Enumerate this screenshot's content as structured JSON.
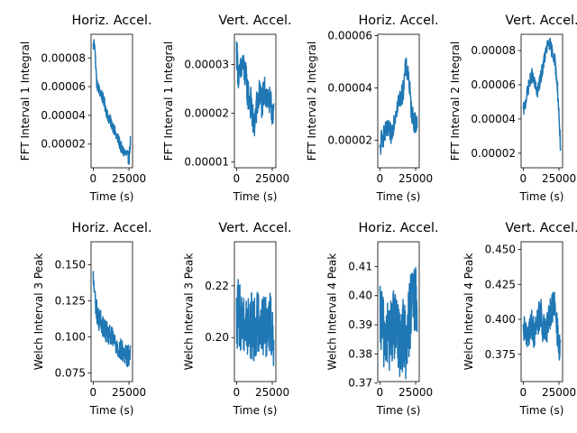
{
  "chart_data": [
    {
      "type": "line",
      "title": "Horiz. Accel.",
      "xlabel": "Time (s)",
      "ylabel": "FFT Interval 1 Integral",
      "xlim": [
        -1500,
        27500
      ],
      "ylim": [
        3.5e-06,
        9.65e-05
      ],
      "xticks": [
        0,
        25000
      ],
      "xtick_labels": [
        "0",
        "25000"
      ],
      "yticks": [
        2e-05,
        4e-05,
        6e-05,
        8e-05
      ],
      "ytick_labels": [
        "0.00002",
        "0.00004",
        "0.00006",
        "0.00008"
      ],
      "color": "#1f77b4",
      "series": [
        {
          "x": [
            0,
            1000,
            1500,
            2500,
            4000,
            6000,
            8000,
            10000,
            12000,
            14000,
            16000,
            18000,
            20000,
            22000,
            24000,
            25000,
            26000
          ],
          "y": [
            8.8e-05,
            9.2e-05,
            8e-05,
            6.2e-05,
            5.8e-05,
            5.4e-05,
            4.8e-05,
            4e-05,
            3.6e-05,
            3.2e-05,
            2.6e-05,
            2.2e-05,
            1.6e-05,
            1.4e-05,
            1.2e-05,
            9e-06,
            2.2e-05
          ],
          "noise": 4e-06
        }
      ]
    },
    {
      "type": "line",
      "title": "Vert. Accel.",
      "xlabel": "Time (s)",
      "ylabel": "FFT Interval 1 Integral",
      "xlim": [
        -1500,
        27500
      ],
      "ylim": [
        8.8e-06,
        3.62e-05
      ],
      "xticks": [
        0,
        25000
      ],
      "xtick_labels": [
        "0",
        "25000"
      ],
      "yticks": [
        1e-05,
        2e-05,
        3e-05
      ],
      "ytick_labels": [
        "0.00001",
        "0.00002",
        "0.00003"
      ],
      "color": "#1f77b4",
      "series": [
        {
          "x": [
            0,
            1000,
            2000,
            4000,
            6000,
            8000,
            10000,
            12000,
            14000,
            16000,
            18000,
            20000,
            22000,
            24000,
            26000
          ],
          "y": [
            3.3e-05,
            2.9e-05,
            2.7e-05,
            3e-05,
            2.8e-05,
            2.4e-05,
            2.2e-05,
            1.7e-05,
            2.1e-05,
            2.4e-05,
            2.2e-05,
            2.5e-05,
            2.3e-05,
            2.1e-05,
            2.1e-05
          ],
          "noise": 3.5e-06
        }
      ]
    },
    {
      "type": "line",
      "title": "Horiz. Accel.",
      "xlabel": "Time (s)",
      "ylabel": "FFT Interval 2 Integral",
      "xlim": [
        -1500,
        27500
      ],
      "ylim": [
        9.5e-06,
        6.05e-05
      ],
      "xticks": [
        0,
        25000
      ],
      "xtick_labels": [
        "0",
        "25000"
      ],
      "yticks": [
        2e-05,
        4e-05,
        6e-05
      ],
      "ytick_labels": [
        "0.00002",
        "0.00004",
        "0.00006"
      ],
      "color": "#1f77b4",
      "series": [
        {
          "x": [
            0,
            1000,
            2000,
            4000,
            6000,
            8000,
            10000,
            12000,
            14000,
            16000,
            18000,
            20000,
            22000,
            24000,
            26000
          ],
          "y": [
            1.5e-05,
            2e-05,
            2.1e-05,
            2.3e-05,
            2.4e-05,
            2.2e-05,
            2.8e-05,
            3.3e-05,
            3.6e-05,
            3.8e-05,
            4.8e-05,
            4.5e-05,
            3.1e-05,
            2.7e-05,
            2.6e-05
          ],
          "noise": 4e-06
        }
      ]
    },
    {
      "type": "line",
      "title": "Vert. Accel.",
      "xlabel": "Time (s)",
      "ylabel": "FFT Interval 2 Integral",
      "xlim": [
        -1500,
        27500
      ],
      "ylim": [
        1.15e-05,
        8.95e-05
      ],
      "xticks": [
        0,
        25000
      ],
      "xtick_labels": [
        "0",
        "25000"
      ],
      "yticks": [
        2e-05,
        4e-05,
        6e-05,
        8e-05
      ],
      "ytick_labels": [
        "0.00002",
        "0.00004",
        "0.00006",
        "0.00008"
      ],
      "color": "#1f77b4",
      "series": [
        {
          "x": [
            0,
            1000,
            2000,
            4000,
            6000,
            8000,
            10000,
            12000,
            14000,
            16000,
            18000,
            20000,
            22000,
            24000,
            26000
          ],
          "y": [
            4.5e-05,
            4.7e-05,
            5.2e-05,
            6e-05,
            6.6e-05,
            6e-05,
            5.6e-05,
            6.3e-05,
            7.2e-05,
            8e-05,
            8.5e-05,
            8e-05,
            7.5e-05,
            5.8e-05,
            2.5e-05
          ],
          "noise": 4e-06
        }
      ]
    },
    {
      "type": "line",
      "title": "Horiz. Accel.",
      "xlabel": "Time (s)",
      "ylabel": "Welch Interval 3 Peak",
      "xlim": [
        -1500,
        27500
      ],
      "ylim": [
        0.069,
        0.166
      ],
      "xticks": [
        0,
        25000
      ],
      "xtick_labels": [
        "0",
        "25000"
      ],
      "yticks": [
        0.075,
        0.1,
        0.125,
        0.15
      ],
      "ytick_labels": [
        "0.075",
        "0.100",
        "0.125",
        "0.150"
      ],
      "color": "#1f77b4",
      "series": [
        {
          "x": [
            0,
            1000,
            2000,
            4000,
            6000,
            8000,
            10000,
            12000,
            14000,
            16000,
            18000,
            20000,
            22000,
            24000,
            26000
          ],
          "y": [
            0.14,
            0.13,
            0.12,
            0.112,
            0.11,
            0.105,
            0.102,
            0.1,
            0.098,
            0.095,
            0.092,
            0.09,
            0.088,
            0.086,
            0.09
          ],
          "noise": 0.008
        }
      ]
    },
    {
      "type": "line",
      "title": "Vert. Accel.",
      "xlabel": "Time (s)",
      "ylabel": "Welch Interval 3 Peak",
      "xlim": [
        -1500,
        27500
      ],
      "ylim": [
        0.183,
        0.237
      ],
      "xticks": [
        0,
        25000
      ],
      "xtick_labels": [
        "0",
        "25000"
      ],
      "yticks": [
        0.2,
        0.22
      ],
      "ytick_labels": [
        "0.20",
        "0.22"
      ],
      "color": "#1f77b4",
      "series": [
        {
          "x": [
            0,
            1000,
            2000,
            4000,
            6000,
            8000,
            10000,
            12000,
            14000,
            16000,
            18000,
            20000,
            22000,
            24000,
            26000
          ],
          "y": [
            0.205,
            0.21,
            0.208,
            0.207,
            0.206,
            0.204,
            0.205,
            0.203,
            0.206,
            0.207,
            0.205,
            0.204,
            0.206,
            0.205,
            0.2
          ],
          "noise": 0.013
        }
      ]
    },
    {
      "type": "line",
      "title": "Horiz. Accel.",
      "xlabel": "Time (s)",
      "ylabel": "Welch Interval 4 Peak",
      "xlim": [
        -1500,
        27500
      ],
      "ylim": [
        0.3705,
        0.4185
      ],
      "xticks": [
        0,
        25000
      ],
      "xtick_labels": [
        "0",
        "25000"
      ],
      "yticks": [
        0.37,
        0.38,
        0.39,
        0.4,
        0.41
      ],
      "ytick_labels": [
        "0.37",
        "0.38",
        "0.39",
        "0.40",
        "0.41"
      ],
      "color": "#1f77b4",
      "series": [
        {
          "x": [
            0,
            1000,
            2000,
            4000,
            6000,
            8000,
            10000,
            12000,
            14000,
            16000,
            18000,
            20000,
            22000,
            24000,
            26000
          ],
          "y": [
            0.39,
            0.392,
            0.388,
            0.387,
            0.386,
            0.388,
            0.39,
            0.386,
            0.385,
            0.386,
            0.384,
            0.39,
            0.396,
            0.398,
            0.396
          ],
          "noise": 0.013
        }
      ]
    },
    {
      "type": "line",
      "title": "Vert. Accel.",
      "xlabel": "Time (s)",
      "ylabel": "Welch Interval 4 Peak",
      "xlim": [
        -1500,
        27500
      ],
      "ylim": [
        0.3555,
        0.4555
      ],
      "xticks": [
        0,
        25000
      ],
      "xtick_labels": [
        "0",
        "25000"
      ],
      "yticks": [
        0.375,
        0.4,
        0.425,
        0.45
      ],
      "ytick_labels": [
        "0.375",
        "0.400",
        "0.425",
        "0.450"
      ],
      "color": "#1f77b4",
      "series": [
        {
          "x": [
            0,
            1000,
            2000,
            4000,
            6000,
            8000,
            10000,
            12000,
            14000,
            16000,
            18000,
            20000,
            22000,
            24000,
            26000
          ],
          "y": [
            0.385,
            0.392,
            0.39,
            0.393,
            0.396,
            0.39,
            0.398,
            0.405,
            0.392,
            0.39,
            0.4,
            0.41,
            0.408,
            0.39,
            0.375
          ],
          "noise": 0.012
        }
      ]
    }
  ]
}
